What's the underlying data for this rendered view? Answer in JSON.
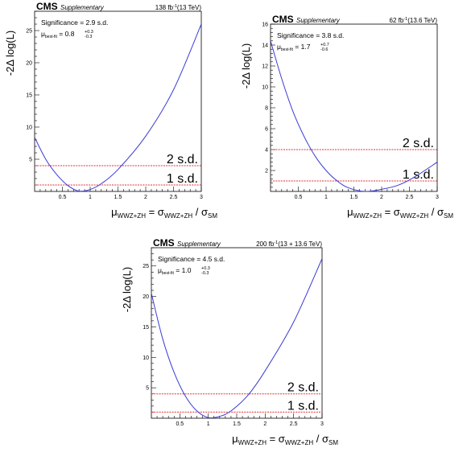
{
  "chart_data": [
    {
      "type": "line",
      "header": {
        "experiment": "CMS",
        "label": "Supplementary",
        "lumi": "138 fb",
        "lumi_sup": "-1",
        "energy": "(13 TeV)"
      },
      "significance": "Significance = 2.9 s.d.",
      "mu_best": {
        "prefix": "μ",
        "sub": "best-fit",
        "value": " = 0.8",
        "up": "+0.3",
        "down": "-0.3"
      },
      "ylabel": "-2Δ log(L)",
      "xlabel": {
        "mu": "μ",
        "mu_sub": "WWZ+ZH",
        "eq": " = σ",
        "sig_sub": "WWZ+ZH",
        "slash": " / σ",
        "sm_sub": "SM"
      },
      "xlim": [
        0,
        3
      ],
      "ylim": [
        0,
        28
      ],
      "xticks": [
        "0.5",
        "1",
        "1.5",
        "2",
        "2.5",
        "3"
      ],
      "yticks": [
        "5",
        "10",
        "15",
        "20",
        "25"
      ],
      "sd_lines": [
        {
          "label": "1 s.d.",
          "y": 1
        },
        {
          "label": "2 s.d.",
          "y": 4
        }
      ],
      "series": [
        {
          "x": [
            0,
            0.2,
            0.4,
            0.6,
            0.8,
            1.0,
            1.2,
            1.5,
            2.0,
            2.5,
            3.0
          ],
          "y": [
            8.4,
            5.0,
            2.6,
            0.9,
            0.05,
            0.3,
            1.2,
            3.4,
            8.6,
            15.8,
            26.0
          ]
        }
      ]
    },
    {
      "type": "line",
      "header": {
        "experiment": "CMS",
        "label": "Supplementary",
        "lumi": "62 fb",
        "lumi_sup": "-1",
        "energy": "(13.6 TeV)"
      },
      "significance": "Significance = 3.8 s.d.",
      "mu_best": {
        "prefix": "μ",
        "sub": "best-fit",
        "value": " = 1.7",
        "up": "+0.7",
        "down": "-0.6"
      },
      "ylabel": "-2Δ log(L)",
      "xlabel": {
        "mu": "μ",
        "mu_sub": "WWZ+ZH",
        "eq": " = σ",
        "sig_sub": "WWZ+ZH",
        "slash": " / σ",
        "sm_sub": "SM"
      },
      "xlim": [
        0,
        3
      ],
      "ylim": [
        0,
        16
      ],
      "xticks": [
        "0.5",
        "1",
        "1.5",
        "2",
        "2.5",
        "3"
      ],
      "yticks": [
        "2",
        "4",
        "6",
        "8",
        "10",
        "12",
        "14",
        "16"
      ],
      "sd_lines": [
        {
          "label": "1 s.d.",
          "y": 1
        },
        {
          "label": "2 s.d.",
          "y": 4
        }
      ],
      "series": [
        {
          "x": [
            0,
            0.2,
            0.4,
            0.6,
            0.8,
            1.0,
            1.2,
            1.4,
            1.7,
            2.0,
            2.3,
            2.6,
            3.0
          ],
          "y": [
            14.4,
            10.8,
            7.7,
            5.3,
            3.4,
            2.0,
            1.0,
            0.35,
            0.0,
            0.2,
            0.6,
            1.4,
            2.8
          ]
        }
      ]
    },
    {
      "type": "line",
      "header": {
        "experiment": "CMS",
        "label": "Supplementary",
        "lumi": "200 fb",
        "lumi_sup": "-1",
        "energy": "(13 + 13.6 TeV)"
      },
      "significance": "Significance = 4.5 s.d.",
      "mu_best": {
        "prefix": "μ",
        "sub": "best-fit",
        "value": " = 1.0",
        "up": "+0.3",
        "down": "-0.3"
      },
      "ylabel": "-2Δ log(L)",
      "xlabel": {
        "mu": "μ",
        "mu_sub": "WWZ+ZH",
        "eq": " = σ",
        "sig_sub": "WWZ+ZH",
        "slash": " / σ",
        "sm_sub": "SM"
      },
      "xlim": [
        0,
        3
      ],
      "ylim": [
        0,
        28
      ],
      "xticks": [
        "0.5",
        "1",
        "1.5",
        "2",
        "2.5",
        "3"
      ],
      "yticks": [
        "5",
        "10",
        "15",
        "20",
        "25"
      ],
      "sd_lines": [
        {
          "label": "1 s.d.",
          "y": 1
        },
        {
          "label": "2 s.d.",
          "y": 4
        }
      ],
      "series": [
        {
          "x": [
            0,
            0.2,
            0.4,
            0.6,
            0.8,
            1.0,
            1.2,
            1.4,
            1.7,
            2.0,
            2.5,
            3.0
          ],
          "y": [
            20.5,
            13.0,
            7.5,
            3.6,
            1.2,
            0.1,
            0.3,
            1.2,
            3.8,
            7.8,
            15.8,
            26.2
          ]
        }
      ]
    }
  ],
  "colors": {
    "curve": "#3b3bd6",
    "sd_line": "#e03030",
    "frame": "#000000"
  }
}
